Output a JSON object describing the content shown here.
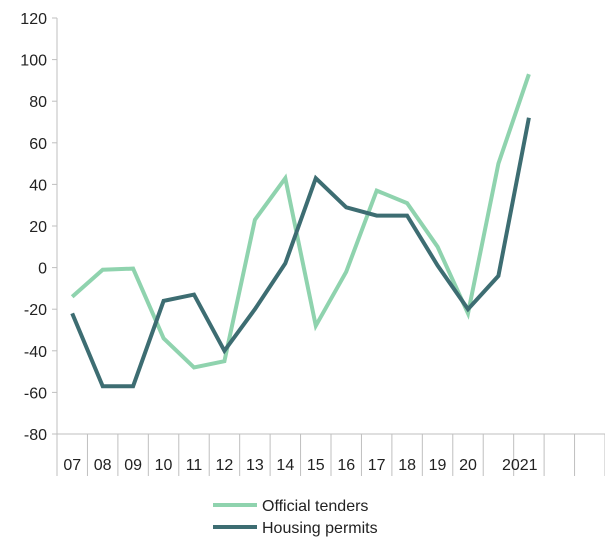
{
  "chart_data": {
    "type": "line",
    "title": "",
    "xlabel": "",
    "ylabel": "",
    "categories": [
      "07",
      "08",
      "09",
      "10",
      "11",
      "12",
      "13",
      "14",
      "15",
      "16",
      "17",
      "18",
      "19",
      "20",
      "",
      "2021",
      "",
      ""
    ],
    "y_ticks": [
      "120",
      "100",
      "80",
      "60",
      "40",
      "20",
      "0",
      "-20",
      "-40",
      "-60",
      "-80"
    ],
    "ylim": [
      -80,
      120
    ],
    "grid": false,
    "legend_position": "bottom",
    "series": [
      {
        "name": "Official tenders",
        "color": "#8fd3ae",
        "values": [
          -14,
          -1,
          -0.5,
          -34,
          -48,
          -45,
          23,
          43,
          -28,
          -2,
          37,
          31,
          10,
          -22,
          50,
          93,
          null,
          null
        ]
      },
      {
        "name": "Housing permits",
        "color": "#3d6d72",
        "values": [
          -22,
          -57,
          -57,
          -16,
          -13,
          -40,
          -20,
          2,
          43,
          29,
          25,
          25,
          1,
          -20,
          -4,
          72,
          null,
          null
        ]
      }
    ],
    "legend": [
      {
        "label": "Official tenders",
        "color": "#8fd3ae"
      },
      {
        "label": "Housing permits",
        "color": "#3d6d72"
      }
    ]
  }
}
